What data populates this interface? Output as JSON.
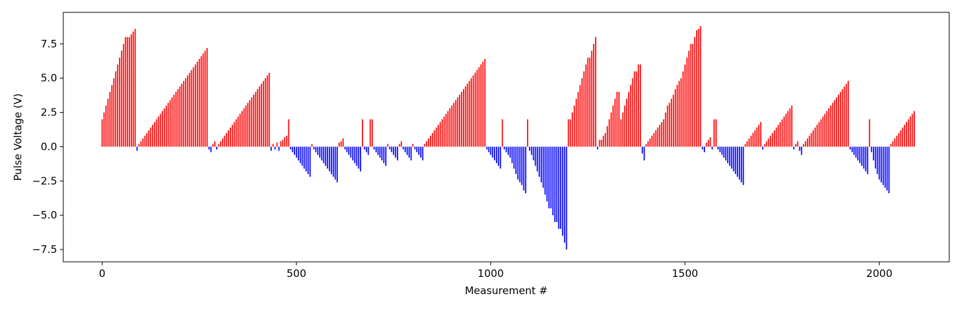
{
  "chart_data": {
    "type": "bar",
    "title": "",
    "xlabel": "Measurement #",
    "ylabel": "Pulse Voltage (V)",
    "xlim": [
      -100,
      2180
    ],
    "ylim": [
      -8.4,
      9.8
    ],
    "xticks": [
      0,
      500,
      1000,
      1500,
      2000
    ],
    "yticks": [
      -7.5,
      -5.0,
      -2.5,
      0.0,
      2.5,
      5.0,
      7.5
    ],
    "ytick_decimals": 1,
    "bar_width": 3,
    "grid": false,
    "legend": "none",
    "colors": {
      "positive": "#ff0000",
      "negative": "#0000ff"
    },
    "x": [
      0,
      5,
      10,
      15,
      20,
      25,
      30,
      35,
      40,
      45,
      50,
      55,
      60,
      65,
      70,
      75,
      80,
      85,
      90,
      95,
      100,
      105,
      110,
      115,
      120,
      125,
      130,
      135,
      140,
      145,
      150,
      155,
      160,
      165,
      170,
      175,
      180,
      185,
      190,
      195,
      200,
      205,
      210,
      215,
      220,
      225,
      230,
      235,
      240,
      245,
      250,
      255,
      260,
      265,
      270,
      275,
      280,
      285,
      290,
      295,
      300,
      305,
      310,
      315,
      320,
      325,
      330,
      335,
      340,
      345,
      350,
      355,
      360,
      365,
      370,
      375,
      380,
      385,
      390,
      395,
      400,
      405,
      410,
      415,
      420,
      425,
      430,
      435,
      440,
      445,
      450,
      455,
      460,
      465,
      470,
      475,
      480,
      485,
      490,
      495,
      500,
      505,
      510,
      515,
      520,
      525,
      530,
      535,
      540,
      545,
      550,
      555,
      560,
      565,
      570,
      575,
      580,
      585,
      590,
      595,
      600,
      605,
      610,
      615,
      620,
      625,
      630,
      635,
      640,
      645,
      650,
      655,
      660,
      665,
      670,
      675,
      680,
      685,
      690,
      695,
      700,
      705,
      710,
      715,
      720,
      725,
      730,
      735,
      740,
      745,
      750,
      755,
      760,
      765,
      770,
      775,
      780,
      785,
      790,
      795,
      800,
      805,
      810,
      815,
      820,
      825,
      830,
      835,
      840,
      845,
      850,
      855,
      860,
      865,
      870,
      875,
      880,
      885,
      890,
      895,
      900,
      905,
      910,
      915,
      920,
      925,
      930,
      935,
      940,
      945,
      950,
      955,
      960,
      965,
      970,
      975,
      980,
      985,
      990,
      995,
      1000,
      1005,
      1010,
      1015,
      1020,
      1025,
      1030,
      1035,
      1040,
      1045,
      1050,
      1055,
      1060,
      1065,
      1070,
      1075,
      1080,
      1085,
      1090,
      1095,
      1100,
      1105,
      1110,
      1115,
      1120,
      1125,
      1130,
      1135,
      1140,
      1145,
      1150,
      1155,
      1160,
      1165,
      1170,
      1175,
      1180,
      1185,
      1190,
      1195,
      1200,
      1205,
      1210,
      1215,
      1220,
      1225,
      1230,
      1235,
      1240,
      1245,
      1250,
      1255,
      1260,
      1265,
      1270,
      1275,
      1280,
      1285,
      1290,
      1295,
      1300,
      1305,
      1310,
      1315,
      1320,
      1325,
      1330,
      1335,
      1340,
      1345,
      1350,
      1355,
      1360,
      1365,
      1370,
      1375,
      1380,
      1385,
      1390,
      1395,
      1400,
      1405,
      1410,
      1415,
      1420,
      1425,
      1430,
      1435,
      1440,
      1445,
      1450,
      1455,
      1460,
      1465,
      1470,
      1475,
      1480,
      1485,
      1490,
      1495,
      1500,
      1505,
      1510,
      1515,
      1520,
      1525,
      1530,
      1535,
      1540,
      1545,
      1550,
      1555,
      1560,
      1565,
      1570,
      1575,
      1580,
      1585,
      1590,
      1595,
      1600,
      1605,
      1610,
      1615,
      1620,
      1625,
      1630,
      1635,
      1640,
      1645,
      1650,
      1655,
      1660,
      1665,
      1670,
      1675,
      1680,
      1685,
      1690,
      1695,
      1700,
      1705,
      1710,
      1715,
      1720,
      1725,
      1730,
      1735,
      1740,
      1745,
      1750,
      1755,
      1760,
      1765,
      1770,
      1775,
      1780,
      1785,
      1790,
      1795,
      1800,
      1805,
      1810,
      1815,
      1820,
      1825,
      1830,
      1835,
      1840,
      1845,
      1850,
      1855,
      1860,
      1865,
      1870,
      1875,
      1880,
      1885,
      1890,
      1895,
      1900,
      1905,
      1910,
      1915,
      1920,
      1925,
      1930,
      1935,
      1940,
      1945,
      1950,
      1955,
      1960,
      1965,
      1970,
      1975,
      1980,
      1985,
      1990,
      1995,
      2000,
      2005,
      2010,
      2015,
      2020,
      2025,
      2030,
      2035,
      2040,
      2045,
      2050,
      2055,
      2060,
      2065,
      2070,
      2075,
      2080,
      2085,
      2090
    ],
    "values": [
      2.0,
      2.5,
      3.0,
      3.5,
      4.0,
      4.5,
      5.0,
      5.5,
      6.0,
      6.5,
      7.0,
      7.5,
      8.0,
      8.0,
      8.0,
      8.2,
      8.4,
      8.6,
      -0.3,
      0.2,
      0.4,
      0.6,
      0.8,
      1.0,
      1.2,
      1.4,
      1.6,
      1.8,
      2.0,
      2.2,
      2.4,
      2.6,
      2.8,
      3.0,
      3.2,
      3.4,
      3.6,
      3.8,
      4.0,
      4.2,
      4.4,
      4.6,
      4.8,
      5.0,
      5.2,
      5.4,
      5.6,
      5.8,
      6.0,
      6.2,
      6.4,
      6.6,
      6.8,
      7.0,
      7.2,
      -0.2,
      -0.4,
      0.2,
      0.4,
      -0.2,
      0.2,
      0.4,
      0.6,
      0.8,
      1.0,
      1.2,
      1.4,
      1.6,
      1.8,
      2.0,
      2.2,
      2.4,
      2.6,
      2.8,
      3.0,
      3.2,
      3.4,
      3.6,
      3.8,
      4.0,
      4.2,
      4.4,
      4.6,
      4.8,
      5.0,
      5.2,
      5.4,
      -0.3,
      0.2,
      -0.2,
      0.3,
      -0.3,
      0.4,
      0.5,
      0.7,
      0.8,
      2.0,
      -0.2,
      -0.4,
      -0.6,
      -0.8,
      -1.0,
      -1.2,
      -1.4,
      -1.6,
      -1.8,
      -2.0,
      -2.2,
      0.2,
      -0.2,
      -0.4,
      -0.6,
      -0.8,
      -1.0,
      -1.2,
      -1.4,
      -1.6,
      -1.8,
      -2.0,
      -2.2,
      -2.4,
      -2.6,
      0.3,
      0.4,
      0.6,
      -0.2,
      -0.4,
      -0.6,
      -0.8,
      -1.0,
      -1.2,
      -1.4,
      -1.6,
      -1.8,
      2.0,
      -0.2,
      -0.4,
      -0.6,
      2.0,
      2.0,
      -0.2,
      -0.4,
      -0.6,
      -0.8,
      -1.0,
      -1.2,
      -1.4,
      0.2,
      -0.2,
      -0.4,
      -0.6,
      -0.8,
      -1.0,
      0.2,
      0.4,
      -0.2,
      -0.4,
      -0.6,
      -0.8,
      -1.0,
      0.2,
      -0.2,
      -0.4,
      -0.6,
      -0.8,
      -1.0,
      0.2,
      0.4,
      0.6,
      0.8,
      1.0,
      1.2,
      1.4,
      1.6,
      1.8,
      2.0,
      2.2,
      2.4,
      2.6,
      2.8,
      3.0,
      3.2,
      3.4,
      3.6,
      3.8,
      4.0,
      4.2,
      4.4,
      4.6,
      4.8,
      5.0,
      5.2,
      5.4,
      5.6,
      5.8,
      6.0,
      6.2,
      6.4,
      -0.2,
      -0.4,
      -0.6,
      -0.8,
      -1.0,
      -1.2,
      -1.4,
      -1.6,
      2.0,
      -0.2,
      -0.4,
      -0.6,
      -0.8,
      -1.2,
      -1.6,
      -2.0,
      -2.4,
      -2.6,
      -2.8,
      -3.2,
      -3.4,
      2.0,
      -0.3,
      -0.6,
      -1.0,
      -1.4,
      -1.8,
      -2.2,
      -2.6,
      -3.0,
      -3.5,
      -4.0,
      -4.5,
      -4.5,
      -5.0,
      -5.5,
      -5.5,
      -6.0,
      -6.0,
      -6.5,
      -7.0,
      -7.5,
      2.0,
      2.0,
      2.5,
      3.0,
      3.5,
      4.0,
      4.5,
      5.0,
      5.5,
      6.0,
      6.5,
      6.5,
      7.0,
      7.5,
      8.0,
      -0.2,
      0.5,
      0.5,
      0.8,
      1.0,
      1.5,
      2.0,
      2.5,
      3.0,
      3.5,
      4.0,
      4.0,
      2.0,
      2.5,
      3.0,
      3.5,
      4.0,
      4.5,
      5.0,
      5.5,
      5.5,
      6.0,
      6.0,
      -0.5,
      -1.0,
      0.2,
      0.4,
      0.6,
      0.8,
      1.0,
      1.2,
      1.4,
      1.6,
      1.8,
      2.0,
      2.5,
      3.0,
      3.2,
      3.5,
      3.8,
      4.2,
      4.5,
      4.8,
      5.0,
      5.5,
      6.0,
      6.5,
      7.0,
      7.5,
      7.5,
      8.0,
      8.5,
      8.6,
      8.8,
      -0.2,
      -0.4,
      0.3,
      0.5,
      0.7,
      -0.2,
      2.0,
      2.0,
      -0.2,
      -0.4,
      -0.6,
      -0.8,
      -1.0,
      -1.2,
      -1.4,
      -1.6,
      -1.8,
      -2.0,
      -2.2,
      -2.4,
      -2.6,
      -2.8,
      0.2,
      0.4,
      0.6,
      0.8,
      1.0,
      1.2,
      1.4,
      1.6,
      1.8,
      -0.2,
      0.2,
      0.4,
      0.6,
      0.8,
      1.0,
      1.2,
      1.4,
      1.6,
      1.8,
      2.0,
      2.2,
      2.4,
      2.6,
      2.8,
      3.0,
      -0.2,
      0.2,
      0.4,
      -0.3,
      -0.6,
      0.2,
      0.4,
      0.6,
      0.8,
      1.0,
      1.2,
      1.4,
      1.6,
      1.8,
      2.0,
      2.2,
      2.4,
      2.6,
      2.8,
      3.0,
      3.2,
      3.4,
      3.6,
      3.8,
      4.0,
      4.2,
      4.4,
      4.6,
      4.8,
      -0.2,
      -0.4,
      -0.6,
      -0.8,
      -1.0,
      -1.2,
      -1.4,
      -1.6,
      -1.8,
      -2.0,
      2.0,
      -0.4,
      -1.0,
      -1.6,
      -2.0,
      -2.4,
      -2.6,
      -2.8,
      -3.0,
      -3.2,
      -3.4,
      0.2,
      0.4,
      0.6,
      0.8,
      1.0,
      1.2,
      1.4,
      1.6,
      1.8,
      2.0,
      2.2,
      2.4,
      2.6
    ]
  }
}
